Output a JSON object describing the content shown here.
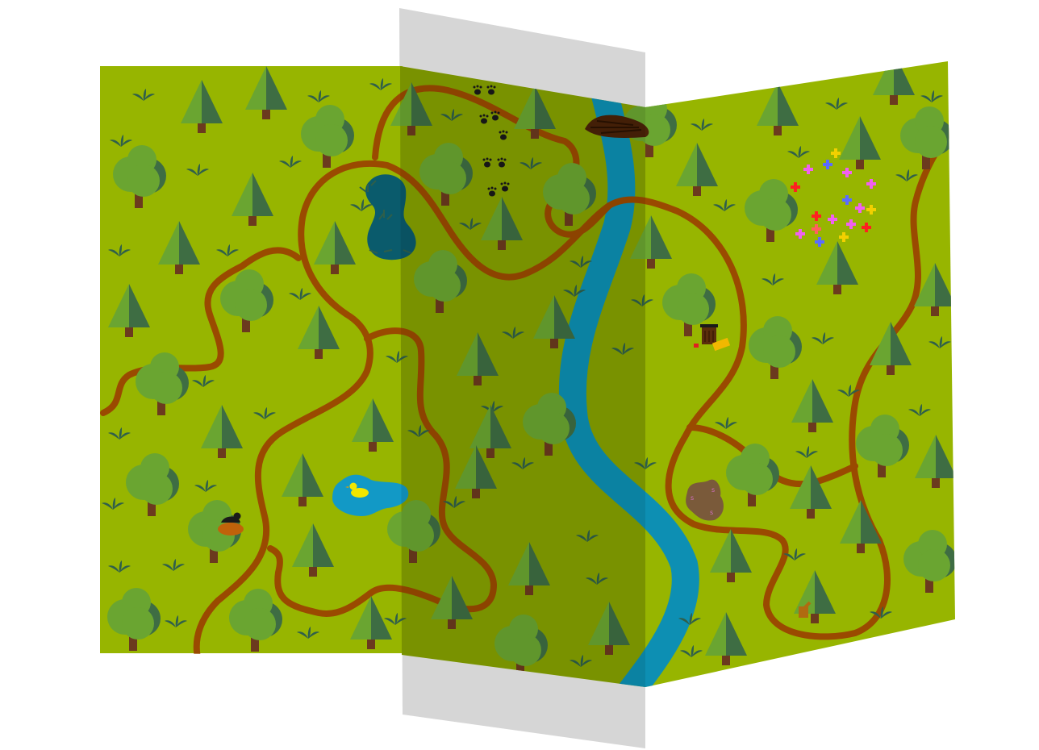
{
  "map": {
    "colors": {
      "background": "#ffffff",
      "grass": "#97b500",
      "grass_middle": "#85a100",
      "fold_gray": "#d6d6d6",
      "path": "#9a4a00",
      "river": "#0d8fb3",
      "river_shadow": "#0b7893",
      "pond_dark": "#0a5b6c",
      "pond_light": "#1299c6",
      "tree_light": "#6aa531",
      "tree_dark": "#3e6d43",
      "trunk": "#6b3a1e",
      "grass_tuft": "#2f5f4a"
    },
    "panels": [
      {
        "name": "left-map-panel",
        "shade": "grass"
      },
      {
        "name": "middle-map-panel",
        "shade": "grass_middle"
      },
      {
        "name": "right-map-panel",
        "shade": "grass"
      }
    ],
    "landmarks": [
      {
        "name": "animal-tracks",
        "icon": "paw-prints-icon"
      },
      {
        "name": "beaver-dam",
        "icon": "dam-icon"
      },
      {
        "name": "duck-pond",
        "icon": "duck-icon"
      },
      {
        "name": "bird-nest",
        "icon": "bird-icon"
      },
      {
        "name": "campsite",
        "icon": "trash-bin-icon"
      },
      {
        "name": "mud-patch",
        "icon": "mud-icon"
      },
      {
        "name": "wildflower-meadow",
        "icon": "flower-icon"
      },
      {
        "name": "tree-stump",
        "icon": "stump-icon"
      }
    ]
  }
}
